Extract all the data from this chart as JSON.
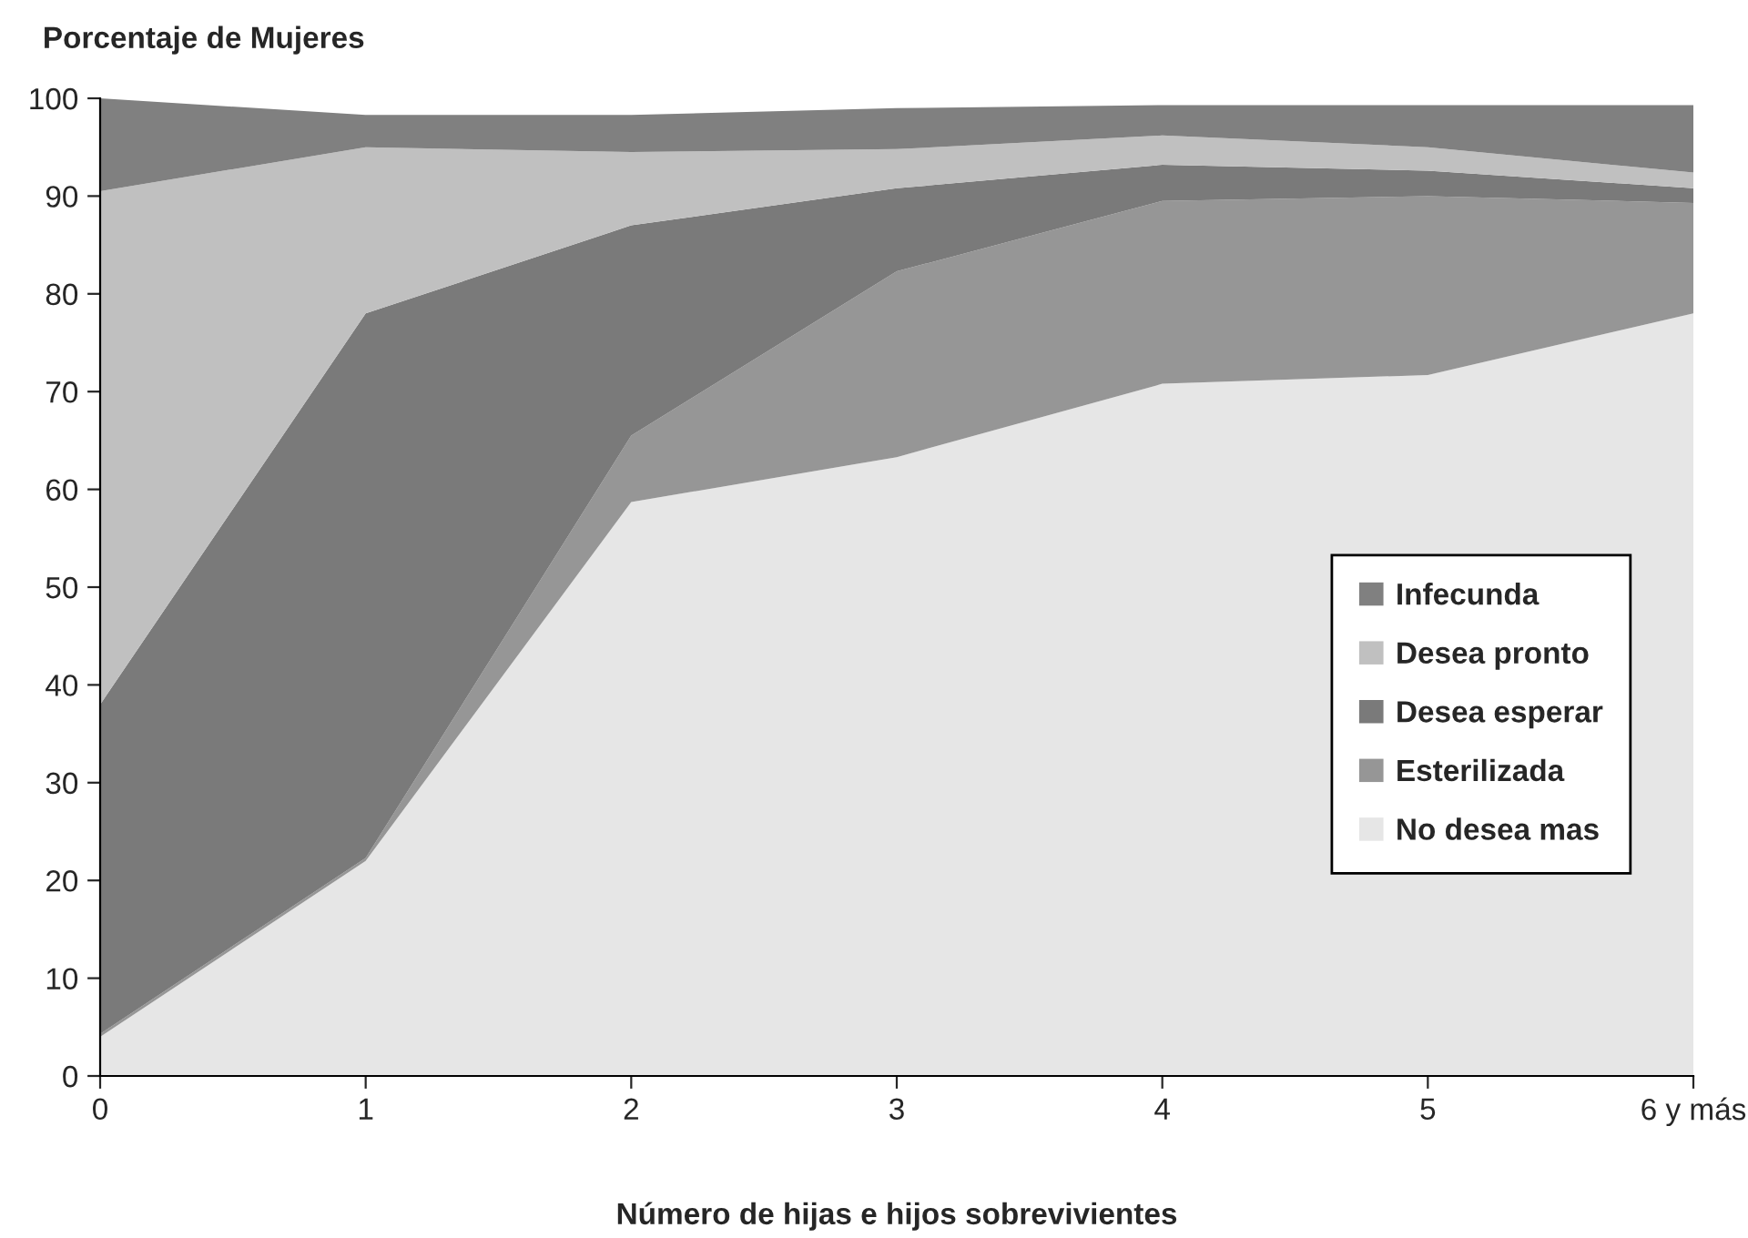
{
  "chart_data": {
    "type": "area",
    "stacked": true,
    "ylabel": "Porcentaje de Mujeres",
    "xlabel": "Número de hijas e hijos sobrevivientes",
    "categories": [
      "0",
      "1",
      "2",
      "3",
      "4",
      "5",
      "6 y más"
    ],
    "series": [
      {
        "name": "No desea mas",
        "color": "#e6e6e6",
        "values": [
          4,
          22,
          58.7,
          63.3,
          70.8,
          71.7,
          78
        ]
      },
      {
        "name": "Esterilizada",
        "color": "#969696",
        "values": [
          0.3,
          0.3,
          6.8,
          19,
          18.7,
          18.3,
          11.3
        ]
      },
      {
        "name": "Desea esperar",
        "color": "#7a7a7a",
        "values": [
          33.7,
          55.7,
          21.5,
          8.5,
          3.7,
          2.6,
          1.5
        ]
      },
      {
        "name": "Desea pronto",
        "color": "#c0c0c0",
        "values": [
          52.5,
          17,
          7.5,
          4,
          3,
          2.4,
          1.6
        ]
      },
      {
        "name": "Infecunda",
        "color": "#808080",
        "values": [
          9.5,
          3.3,
          3.8,
          4.2,
          3.1,
          4.3,
          6.9
        ]
      }
    ],
    "ylim": [
      0,
      100
    ],
    "yticks": [
      0,
      10,
      20,
      30,
      40,
      50,
      60,
      70,
      80,
      90,
      100
    ],
    "grid": false,
    "legend": "right"
  }
}
